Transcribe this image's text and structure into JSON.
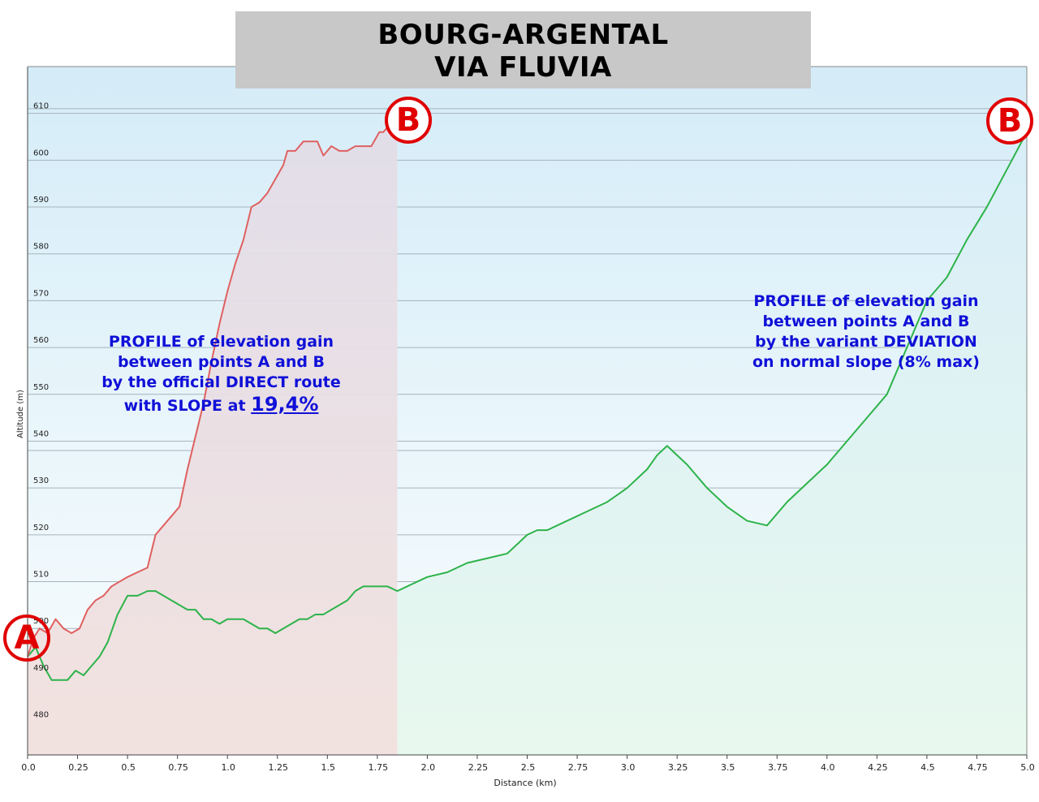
{
  "title": {
    "line1": "BOURG-ARGENTAL",
    "line2": "VIA FLUVIA"
  },
  "annotations": {
    "direct": {
      "lines": [
        "PROFILE of elevation gain",
        "between points A and B",
        "by the official DIRECT route"
      ],
      "slope_prefix": "with SLOPE at ",
      "slope_value": "19,4%"
    },
    "deviation": {
      "lines": [
        "PROFILE of elevation gain",
        "between points A and B",
        "by the variant DEVIATION",
        "on normal slope (8% max)"
      ]
    }
  },
  "markers": {
    "start": "A",
    "end": "B"
  },
  "colors": {
    "direct_line": "#e06060",
    "deviation_line": "#2db34a",
    "direct_fill_top": "#e2dde8",
    "direct_fill_bottom": "#f3e1de",
    "deviation_fill_top": "#d8eef8",
    "deviation_fill_bottom": "#e8f8ee",
    "sky_top": "#d4ecf8",
    "marker": "#e00000",
    "annotation": "#1010d8"
  },
  "chart_data": {
    "type": "area",
    "xlabel": "Distance  (km)",
    "ylabel": "Altitude (m)",
    "xlim": [
      0,
      5.0
    ],
    "ylim": [
      473,
      620
    ],
    "x_ticks": [
      "0.0",
      "0.25",
      "0.5",
      "0.75",
      "1.0",
      "1.25",
      "1.5",
      "1.75",
      "2.0",
      "2.25",
      "2.5",
      "2.75",
      "3.0",
      "3.25",
      "3.5",
      "3.75",
      "4.0",
      "4.25",
      "4.5",
      "4.75",
      "5.0"
    ],
    "y_ticks": [
      "480",
      "490",
      "500",
      "510",
      "520",
      "530",
      "540",
      "550",
      "560",
      "570",
      "580",
      "590",
      "600",
      "610"
    ],
    "grid": true,
    "series": [
      {
        "x": [
          0.0,
          0.03,
          0.06,
          0.1,
          0.14,
          0.18,
          0.22,
          0.26,
          0.3,
          0.34,
          0.38,
          0.42,
          0.46,
          0.5,
          0.55,
          0.6,
          0.64,
          0.68,
          0.72,
          0.76,
          0.8,
          0.84,
          0.88,
          0.92,
          0.96,
          1.0,
          1.04,
          1.08,
          1.12,
          1.16,
          1.2,
          1.24,
          1.28,
          1.3,
          1.34,
          1.38,
          1.42,
          1.45,
          1.48,
          1.52,
          1.56,
          1.6,
          1.64,
          1.68,
          1.72,
          1.76,
          1.78,
          1.8,
          1.85
        ],
        "values": [
          494,
          498,
          500,
          499,
          502,
          500,
          499,
          500,
          504,
          506,
          507,
          509,
          510,
          511,
          512,
          513,
          520,
          522,
          524,
          526,
          534,
          541,
          548,
          557,
          565,
          572,
          578,
          583,
          590,
          591,
          593,
          596,
          599,
          602,
          602,
          604,
          604,
          604,
          601,
          603,
          602,
          602,
          603,
          603,
          603,
          606,
          606,
          607,
          607
        ]
      },
      {
        "x": [
          0.0,
          0.04,
          0.08,
          0.12,
          0.16,
          0.2,
          0.24,
          0.28,
          0.32,
          0.36,
          0.4,
          0.45,
          0.5,
          0.55,
          0.6,
          0.64,
          0.68,
          0.72,
          0.76,
          0.8,
          0.84,
          0.88,
          0.92,
          0.96,
          1.0,
          1.04,
          1.08,
          1.12,
          1.16,
          1.2,
          1.24,
          1.28,
          1.32,
          1.36,
          1.4,
          1.44,
          1.48,
          1.52,
          1.56,
          1.6,
          1.64,
          1.68,
          1.72,
          1.76,
          1.8,
          1.85,
          1.9,
          2.0,
          2.1,
          2.2,
          2.3,
          2.4,
          2.5,
          2.55,
          2.6,
          2.7,
          2.8,
          2.9,
          3.0,
          3.1,
          3.15,
          3.2,
          3.3,
          3.4,
          3.5,
          3.6,
          3.7,
          3.8,
          3.9,
          4.0,
          4.1,
          4.2,
          4.3,
          4.4,
          4.5,
          4.6,
          4.7,
          4.8,
          4.9,
          5.0
        ],
        "values": [
          494,
          496,
          492,
          489,
          489,
          489,
          491,
          490,
          492,
          494,
          497,
          503,
          507,
          507,
          508,
          508,
          507,
          506,
          505,
          504,
          504,
          502,
          502,
          501,
          502,
          502,
          502,
          501,
          500,
          500,
          499,
          500,
          501,
          502,
          502,
          503,
          503,
          504,
          505,
          506,
          508,
          509,
          509,
          509,
          509,
          508,
          509,
          511,
          512,
          514,
          515,
          516,
          520,
          521,
          521,
          523,
          525,
          527,
          530,
          534,
          537,
          539,
          535,
          530,
          526,
          523,
          522,
          527,
          531,
          535,
          540,
          545,
          550,
          560,
          570,
          575,
          583,
          590,
          598,
          606
        ]
      }
    ]
  }
}
